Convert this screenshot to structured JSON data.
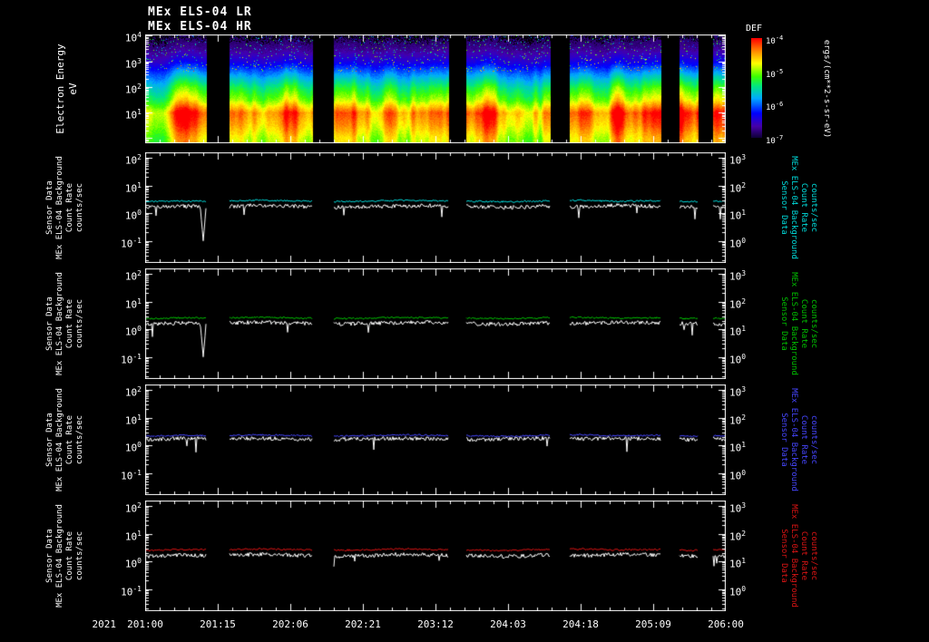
{
  "titles": {
    "line1": "MEx ELS-04 LR",
    "line2": "MEx ELS-04 HR"
  },
  "x_axis": {
    "year_label": "2021",
    "tick_labels": [
      "201:00",
      "201:15",
      "202:06",
      "202:21",
      "203:12",
      "204:03",
      "204:18",
      "205:09",
      "206:00"
    ]
  },
  "time_segments_frac": [
    [
      0,
      0.105
    ],
    [
      0.145,
      0.288
    ],
    [
      0.325,
      0.523
    ],
    [
      0.552,
      0.698
    ],
    [
      0.73,
      0.888
    ],
    [
      0.92,
      0.952
    ],
    [
      0.978,
      1.0
    ]
  ],
  "colors": {
    "background": "#000000",
    "frame": "#ffffff",
    "cyan": "#00dcdc",
    "green": "#00c000",
    "blue": "#4646ff",
    "red": "#dc1414",
    "white": "#ffffff"
  },
  "chart_data": [
    {
      "type": "heatmap",
      "name": "electron-energy-spectrogram",
      "title": "MEx ELS-04 LR / MEx ELS-04 HR",
      "left_ylabel_lines": [
        "Electron Energy",
        "eV"
      ],
      "y_ticks_exp": [
        4,
        3,
        2,
        1
      ],
      "y_log_range": [
        -0.2,
        4.05
      ],
      "x_tick_labels": [
        "201:00",
        "201:15",
        "202:06",
        "202:21",
        "203:12",
        "204:03",
        "204:18",
        "205:09",
        "206:00"
      ],
      "colorbar": {
        "title": "DEF",
        "units_label": "ergs/(cm**2-s-sr-eV)",
        "tick_exps": [
          -4,
          -5,
          -6,
          -7
        ],
        "flux_range_exp": [
          -7,
          -4
        ]
      },
      "energy_profile": {
        "log10_energy_eV": [
          0,
          0.5,
          1,
          1.5,
          2,
          2.5,
          3,
          3.5,
          4
        ],
        "relative_flux": [
          0.8,
          0.9,
          0.97,
          0.74,
          0.6,
          0.42,
          0.22,
          0.1,
          0.04
        ]
      }
    },
    {
      "type": "line",
      "name": "background-count-rate-panel-1",
      "left_ylabel_lines": [
        "Sensor Data",
        "MEx ELS-04 Background",
        "Count Rate",
        "counts/sec"
      ],
      "right_label_lines": [
        "Sensor Data",
        "MEx ELS-04 Background",
        "Count Rate",
        "counts/sec"
      ],
      "right_label_color": "#00dcdc",
      "left_ticks_exp": [
        2,
        1,
        0,
        -1
      ],
      "right_ticks_exp": [
        3,
        2,
        1,
        0
      ],
      "y_log_range": [
        -1.8,
        2.2
      ],
      "series": [
        {
          "name": "anode background count rate",
          "color": "#00dcdc",
          "units": "counts/sec",
          "values": [
            2.6,
            2.8,
            2.7,
            2.9,
            2.8,
            2.6,
            2.7,
            2.9,
            2.8,
            2.7,
            2.6,
            2.8,
            2.9,
            2.7,
            2.8,
            2.6,
            2.7
          ],
          "noise_log": 0.03
        },
        {
          "name": "sensor count rate",
          "color": "#ffffff",
          "units": "counts/sec",
          "values": [
            1.6,
            1.8,
            1.7,
            1.9,
            1.8,
            1.6,
            1.7,
            1.8,
            1.9,
            1.7,
            1.6,
            1.8,
            1.7,
            1.9,
            1.8,
            1.7,
            1.6
          ],
          "noise_log": 0.07
        }
      ],
      "spikes": [
        {
          "frac": 0.1,
          "value": 0.1
        }
      ]
    },
    {
      "type": "line",
      "name": "background-count-rate-panel-2",
      "left_ylabel_lines": [
        "Sensor Data",
        "MEx ELS-04 Background",
        "Count Rate",
        "counts/sec"
      ],
      "right_label_lines": [
        "Sensor Data",
        "MEx ELS-04 Background",
        "Count Rate",
        "counts/sec"
      ],
      "right_label_color": "#00c000",
      "left_ticks_exp": [
        2,
        1,
        0,
        -1
      ],
      "right_ticks_exp": [
        3,
        2,
        1,
        0
      ],
      "y_log_range": [
        -1.8,
        2.2
      ],
      "series": [
        {
          "name": "anode background count rate",
          "color": "#00c000",
          "units": "counts/sec",
          "values": [
            2.4,
            2.6,
            2.5,
            2.7,
            2.6,
            2.4,
            2.5,
            2.7,
            2.6,
            2.5,
            2.4,
            2.6,
            2.7,
            2.5,
            2.6,
            2.4,
            2.5
          ],
          "noise_log": 0.03
        },
        {
          "name": "sensor count rate",
          "color": "#ffffff",
          "units": "counts/sec",
          "values": [
            1.5,
            1.7,
            1.6,
            1.8,
            1.7,
            1.5,
            1.6,
            1.7,
            1.8,
            1.6,
            1.5,
            1.7,
            1.6,
            1.8,
            1.7,
            1.6,
            1.5
          ],
          "noise_log": 0.07
        }
      ],
      "spikes": [
        {
          "frac": 0.1,
          "value": 0.1
        }
      ]
    },
    {
      "type": "line",
      "name": "background-count-rate-panel-3",
      "left_ylabel_lines": [
        "Sensor Data",
        "MEx ELS-04 Background",
        "Count Rate",
        "counts/sec"
      ],
      "right_label_lines": [
        "Sensor Data",
        "MEx ELS-04 Background",
        "Count Rate",
        "counts/sec"
      ],
      "right_label_color": "#4646ff",
      "left_ticks_exp": [
        2,
        1,
        0,
        -1
      ],
      "right_ticks_exp": [
        3,
        2,
        1,
        0
      ],
      "y_log_range": [
        -1.8,
        2.2
      ],
      "series": [
        {
          "name": "anode background count rate",
          "color": "#4646ff",
          "units": "counts/sec",
          "values": [
            2.1,
            2.3,
            2.2,
            2.4,
            2.3,
            2.1,
            2.2,
            2.4,
            2.3,
            2.2,
            2.1,
            2.3,
            2.4,
            2.2,
            2.3,
            2.1,
            2.2
          ],
          "noise_log": 0.03
        },
        {
          "name": "sensor count rate",
          "color": "#ffffff",
          "units": "counts/sec",
          "values": [
            1.6,
            1.8,
            1.7,
            1.8,
            1.7,
            1.6,
            1.7,
            1.8,
            1.7,
            1.6,
            1.7,
            1.8,
            1.7,
            1.8,
            1.7,
            1.6,
            1.7
          ],
          "noise_log": 0.07
        }
      ],
      "spikes": []
    },
    {
      "type": "line",
      "name": "background-count-rate-panel-4",
      "left_ylabel_lines": [
        "Sensor Data",
        "MEx ELS-04 Background",
        "Count Rate",
        "counts/sec"
      ],
      "right_label_lines": [
        "Sensor Data",
        "MEx ELS-04 Background",
        "Count Rate",
        "counts/sec"
      ],
      "right_label_color": "#dc1414",
      "left_ticks_exp": [
        2,
        1,
        0,
        -1
      ],
      "right_ticks_exp": [
        3,
        2,
        1,
        0
      ],
      "y_log_range": [
        -1.8,
        2.2
      ],
      "series": [
        {
          "name": "anode background count rate",
          "color": "#dc1414",
          "units": "counts/sec",
          "values": [
            2.5,
            2.7,
            2.6,
            2.8,
            2.7,
            2.5,
            2.6,
            2.8,
            2.7,
            2.6,
            2.5,
            2.7,
            2.8,
            2.6,
            2.7,
            2.5,
            2.6
          ],
          "noise_log": 0.03
        },
        {
          "name": "sensor count rate",
          "color": "#ffffff",
          "units": "counts/sec",
          "values": [
            1.5,
            1.7,
            1.6,
            1.8,
            1.7,
            1.5,
            1.6,
            1.8,
            1.7,
            1.6,
            1.5,
            1.7,
            1.6,
            1.8,
            1.7,
            1.6,
            1.5
          ],
          "noise_log": 0.07
        }
      ],
      "spikes": []
    }
  ]
}
